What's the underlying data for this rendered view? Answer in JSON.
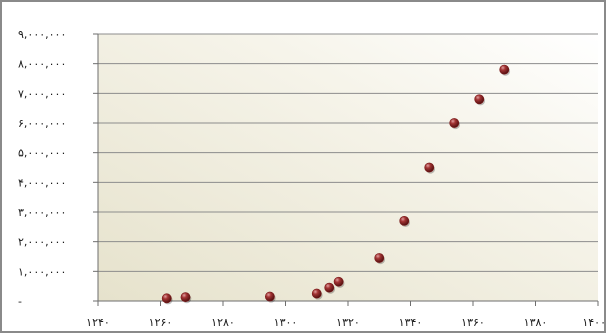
{
  "chart_data": {
    "type": "scatter",
    "title": "",
    "xlabel": "",
    "ylabel": "",
    "xlim": [
      1240,
      1400
    ],
    "ylim": [
      0,
      9000000
    ],
    "x_ticks": [
      1240,
      1260,
      1280,
      1300,
      1320,
      1340,
      1360,
      1380,
      1400
    ],
    "x_tick_labels": [
      "۱۲۴۰",
      "۱۲۶۰",
      "۱۲۸۰",
      "۱۳۰۰",
      "۱۳۲۰",
      "۱۳۴۰",
      "۱۳۶۰",
      "۱۳۸۰",
      "۱۴۰۰"
    ],
    "y_ticks": [
      0,
      1000000,
      2000000,
      3000000,
      4000000,
      5000000,
      6000000,
      7000000,
      8000000,
      9000000
    ],
    "y_tick_labels": [
      "-",
      "۱,۰۰۰,۰۰۰",
      "۲,۰۰۰,۰۰۰",
      "۳,۰۰۰,۰۰۰",
      "۴,۰۰۰,۰۰۰",
      "۵,۰۰۰,۰۰۰",
      "۶,۰۰۰,۰۰۰",
      "۷,۰۰۰,۰۰۰",
      "۸,۰۰۰,۰۰۰",
      "۹,۰۰۰,۰۰۰"
    ],
    "grid": "horizontal",
    "legend": "none",
    "marker_color": "#7a1a1a",
    "series": [
      {
        "x": [
          1262,
          1268,
          1295,
          1310,
          1314,
          1317,
          1330,
          1338,
          1346,
          1354,
          1362,
          1370
        ],
        "y": [
          90000,
          130000,
          150000,
          250000,
          450000,
          650000,
          1450000,
          2700000,
          4500000,
          6000000,
          6800000,
          7800000
        ]
      }
    ]
  }
}
